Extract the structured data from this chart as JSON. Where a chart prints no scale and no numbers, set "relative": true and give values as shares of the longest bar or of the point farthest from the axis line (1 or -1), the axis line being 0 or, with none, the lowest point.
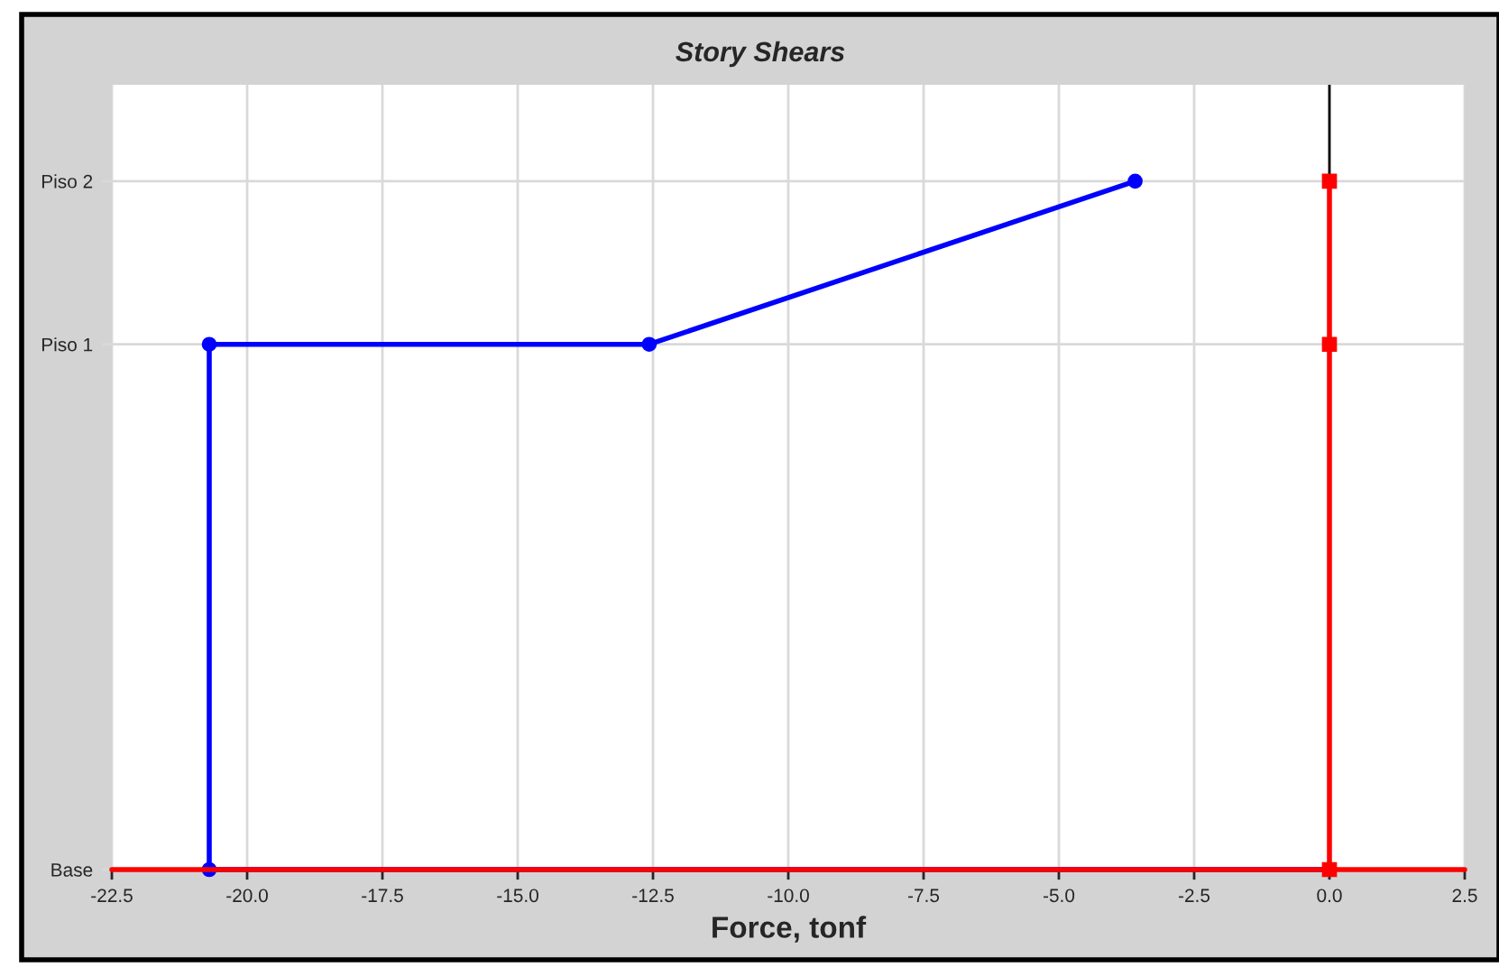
{
  "chart_data": {
    "type": "line",
    "title": "Story Shears",
    "xlabel": "Force, tonf",
    "series": [
      {
        "color": "#0000ff",
        "marker": "circle",
        "x": [
          0,
          -20.7,
          -20.7,
          -12.57,
          -3.59
        ],
        "values": [
          0,
          0,
          0.763,
          0.763,
          1
        ]
      },
      {
        "color": "#ff0000",
        "marker": "square",
        "x": [
          0,
          0,
          0
        ],
        "values": [
          0,
          0.763,
          1
        ]
      },
      {
        "color": "#ff0000",
        "marker": "none",
        "x": [
          -22.5,
          2.5
        ],
        "values": [
          0,
          0
        ]
      }
    ],
    "xlim": [
      -22.5,
      2.5
    ],
    "xticks": [
      {
        "value": -22.5,
        "label": "-22.5"
      },
      {
        "value": -20,
        "label": "-20.0"
      },
      {
        "value": -17.5,
        "label": "-17.5"
      },
      {
        "value": -15,
        "label": "-15.0"
      },
      {
        "value": -12.5,
        "label": "-12.5"
      },
      {
        "value": -10,
        "label": "-10.0"
      },
      {
        "value": -7.5,
        "label": "-7.5"
      },
      {
        "value": -5,
        "label": "-5.0"
      },
      {
        "value": -2.5,
        "label": "-2.5"
      },
      {
        "value": 0,
        "label": "0.0"
      },
      {
        "value": 2.5,
        "label": "2.5"
      }
    ],
    "relative": true,
    "ref_lines": [
      {
        "axis": "x",
        "value": 0,
        "color": "#000000"
      },
      {
        "axis": "y",
        "value": 0,
        "label": "Base",
        "color": "#d9d9d9"
      },
      {
        "axis": "y",
        "value": 0.763,
        "label": "Piso 1",
        "color": "#d9d9d9"
      },
      {
        "axis": "y",
        "value": 1,
        "label": "Piso 2",
        "color": "#d9d9d9"
      }
    ],
    "grid": "x",
    "legend": false
  }
}
